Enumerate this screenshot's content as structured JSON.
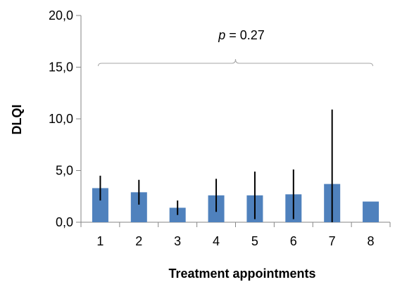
{
  "chart_data": {
    "type": "bar",
    "title": "",
    "xlabel": "Treatment appointments",
    "ylabel": "DLQI",
    "categories": [
      "1",
      "2",
      "3",
      "4",
      "5",
      "6",
      "7",
      "8"
    ],
    "values": [
      3.3,
      2.9,
      1.4,
      2.6,
      2.6,
      2.7,
      3.7,
      2.0
    ],
    "error_low": [
      2.1,
      1.7,
      0.7,
      1.0,
      0.3,
      0.3,
      0.0,
      2.0
    ],
    "error_high": [
      4.5,
      4.1,
      2.1,
      4.2,
      4.9,
      5.1,
      10.9,
      2.0
    ],
    "ylim": [
      0,
      20
    ],
    "yticks": [
      "0,0",
      "5,0",
      "10,0",
      "15,0",
      "20,0"
    ],
    "ytick_values": [
      0,
      5,
      10,
      15,
      20
    ],
    "grid": false,
    "legend": "none",
    "annotation": {
      "p_symbol": "p",
      "text": " = 0.27",
      "value": 0.27
    },
    "colors": {
      "bar": "#4f81bd",
      "axis": "#868686",
      "bracket": "#a6a6a6",
      "errorbar": "#000000"
    }
  }
}
